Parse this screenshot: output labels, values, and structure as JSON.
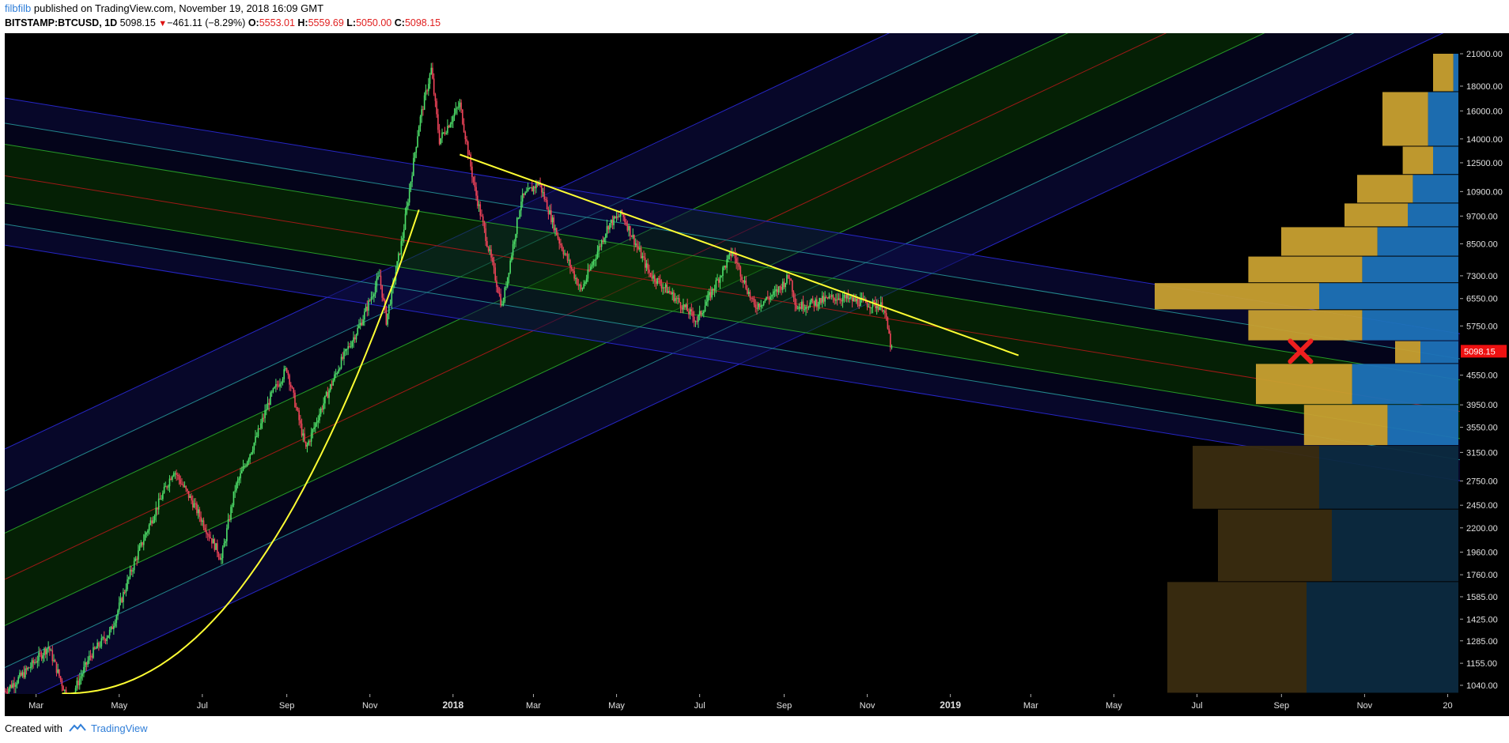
{
  "header": {
    "author": "filbfilb",
    "published_text": "published on TradingView.com, November 19, 2018 16:09 GMT",
    "symbol": "BITSTAMP:BTCUSD, 1D",
    "last_price": "5098.15",
    "change_arrow": "▼",
    "change": "−461.11 (−8.29%)",
    "open_label": "O:",
    "open": "5553.01",
    "high_label": "H:",
    "high": "5559.69",
    "low_label": "L:",
    "low": "5050.00",
    "close_label": "C:",
    "close": "5098.15"
  },
  "footer": {
    "created_with": "Created with",
    "brand": "TradingView"
  },
  "colors": {
    "background": "#000000",
    "candle_up": "#4ee06a",
    "candle_down": "#f0445a",
    "trendline": "#ffff33",
    "channel_fill": "#0a3a0a",
    "channel_band": "#0c0c4a",
    "channel_edge": "#2a2ad8",
    "channel_inner": "#2aa82a",
    "channel_mid": "#b01818",
    "price_label_bg": "#ee1111",
    "vp_up": "#c8a030",
    "vp_down": "#1e72b8",
    "marker": "#ee1f1f"
  },
  "chart_data": {
    "type": "candlestick",
    "symbol": "BITSTAMP:BTCUSD",
    "interval": "1D",
    "y_scale": "log",
    "ylim": [
      1000,
      21500
    ],
    "y_ticks": [
      21000,
      18000,
      16000,
      14000,
      12500,
      10900,
      9700,
      8500,
      7300,
      6550,
      5750,
      4550,
      3950,
      3550,
      3150,
      2750,
      2450,
      2200,
      1960,
      1760,
      1585,
      1425,
      1285,
      1155,
      1040
    ],
    "y_tick_labels": [
      "21000.00",
      "18000.00",
      "16000.00",
      "14000.00",
      "12500.00",
      "10900.00",
      "9700.00",
      "8500.00",
      "7300.00",
      "6550.00",
      "5750.00",
      "4550.00",
      "3950.00",
      "3550.00",
      "3150.00",
      "2750.00",
      "2450.00",
      "2200.00",
      "1960.00",
      "1760.00",
      "1585.00",
      "1425.00",
      "1285.00",
      "1155.00",
      "1040.00"
    ],
    "x_tick_labels": [
      "Mar",
      "May",
      "Jul",
      "Sep",
      "Nov",
      "2018",
      "Mar",
      "May",
      "Jul",
      "Sep",
      "Nov",
      "2019",
      "Mar",
      "May",
      "Jul",
      "Sep",
      "Nov",
      "20"
    ],
    "x_tick_dates": [
      "2017-03-01",
      "2017-05-01",
      "2017-07-01",
      "2017-09-01",
      "2017-11-01",
      "2018-01-01",
      "2018-03-01",
      "2018-05-01",
      "2018-07-01",
      "2018-09-01",
      "2018-11-01",
      "2019-01-01",
      "2019-03-01",
      "2019-05-01",
      "2019-07-01",
      "2019-09-01",
      "2019-11-01",
      "2020-01-01"
    ],
    "x_range": [
      "2017-02-06",
      "2020-01-10"
    ],
    "last_price_label": "5098.15",
    "last_price": 5098.15,
    "ohlc_last": {
      "open": 5553.01,
      "high": 5559.69,
      "low": 5050.0,
      "close": 5098.15
    },
    "series": [
      {
        "name": "BTCUSD approx. close path",
        "points": [
          [
            "2017-02-06",
            1010
          ],
          [
            "2017-02-20",
            1100
          ],
          [
            "2017-03-10",
            1250
          ],
          [
            "2017-03-25",
            960
          ],
          [
            "2017-04-10",
            1200
          ],
          [
            "2017-04-25",
            1350
          ],
          [
            "2017-05-10",
            1800
          ],
          [
            "2017-05-25",
            2300
          ],
          [
            "2017-06-10",
            2900
          ],
          [
            "2017-06-25",
            2450
          ],
          [
            "2017-07-15",
            1900
          ],
          [
            "2017-07-25",
            2650
          ],
          [
            "2017-08-10",
            3400
          ],
          [
            "2017-08-20",
            4100
          ],
          [
            "2017-09-01",
            4700
          ],
          [
            "2017-09-15",
            3200
          ],
          [
            "2017-09-25",
            3800
          ],
          [
            "2017-10-10",
            4800
          ],
          [
            "2017-10-25",
            5800
          ],
          [
            "2017-11-08",
            7300
          ],
          [
            "2017-11-13",
            5900
          ],
          [
            "2017-11-25",
            8800
          ],
          [
            "2017-12-07",
            15000
          ],
          [
            "2017-12-16",
            19500
          ],
          [
            "2017-12-22",
            13900
          ],
          [
            "2018-01-06",
            16500
          ],
          [
            "2018-01-17",
            11000
          ],
          [
            "2018-02-06",
            6300
          ],
          [
            "2018-02-20",
            10500
          ],
          [
            "2018-03-05",
            11400
          ],
          [
            "2018-03-20",
            8600
          ],
          [
            "2018-04-05",
            6800
          ],
          [
            "2018-04-25",
            9300
          ],
          [
            "2018-05-05",
            9800
          ],
          [
            "2018-05-25",
            7400
          ],
          [
            "2018-06-10",
            6700
          ],
          [
            "2018-06-29",
            5900
          ],
          [
            "2018-07-25",
            8200
          ],
          [
            "2018-08-10",
            6300
          ],
          [
            "2018-08-25",
            6700
          ],
          [
            "2018-09-05",
            7300
          ],
          [
            "2018-09-10",
            6300
          ],
          [
            "2018-10-10",
            6600
          ],
          [
            "2018-11-13",
            6300
          ],
          [
            "2018-11-19",
            5098
          ]
        ]
      }
    ],
    "trendlines": [
      {
        "name": "descending resistance",
        "from": [
          "2018-01-06",
          13000
        ],
        "to": [
          "2019-02-20",
          5000
        ]
      },
      {
        "name": "parabolic curve",
        "from": [
          "2017-03-20",
          1000
        ],
        "to": [
          "2017-12-07",
          10000
        ]
      }
    ],
    "volume_profile": [
      {
        "price_low": 17500,
        "price_high": 21000,
        "up": 0.08,
        "down": 0.02
      },
      {
        "price_low": 13500,
        "price_high": 17500,
        "up": 0.18,
        "down": 0.12
      },
      {
        "price_low": 11800,
        "price_high": 13500,
        "up": 0.12,
        "down": 0.1
      },
      {
        "price_low": 10300,
        "price_high": 11800,
        "up": 0.22,
        "down": 0.18
      },
      {
        "price_low": 9200,
        "price_high": 10300,
        "up": 0.25,
        "down": 0.2
      },
      {
        "price_low": 8000,
        "price_high": 9200,
        "up": 0.38,
        "down": 0.32
      },
      {
        "price_low": 7050,
        "price_high": 8000,
        "up": 0.45,
        "down": 0.38
      },
      {
        "price_low": 6200,
        "price_high": 7050,
        "up": 0.65,
        "down": 0.55
      },
      {
        "price_low": 5350,
        "price_high": 6200,
        "up": 0.45,
        "down": 0.38
      },
      {
        "price_low": 4800,
        "price_high": 5350,
        "up": 0.1,
        "down": 0.15
      },
      {
        "price_low": 3950,
        "price_high": 4800,
        "up": 0.38,
        "down": 0.42
      },
      {
        "price_low": 3250,
        "price_high": 3950,
        "up": 0.33,
        "down": 0.28
      },
      {
        "price_low": 2400,
        "price_high": 3250,
        "up": 0.5,
        "down": 0.55
      },
      {
        "price_low": 1700,
        "price_high": 2400,
        "up": 0.45,
        "down": 0.5
      },
      {
        "price_low": 1000,
        "price_high": 1700,
        "up": 0.55,
        "down": 0.6
      }
    ],
    "annotations": [
      {
        "type": "x-mark",
        "date": "2019-09-15",
        "price": 5098
      }
    ]
  }
}
